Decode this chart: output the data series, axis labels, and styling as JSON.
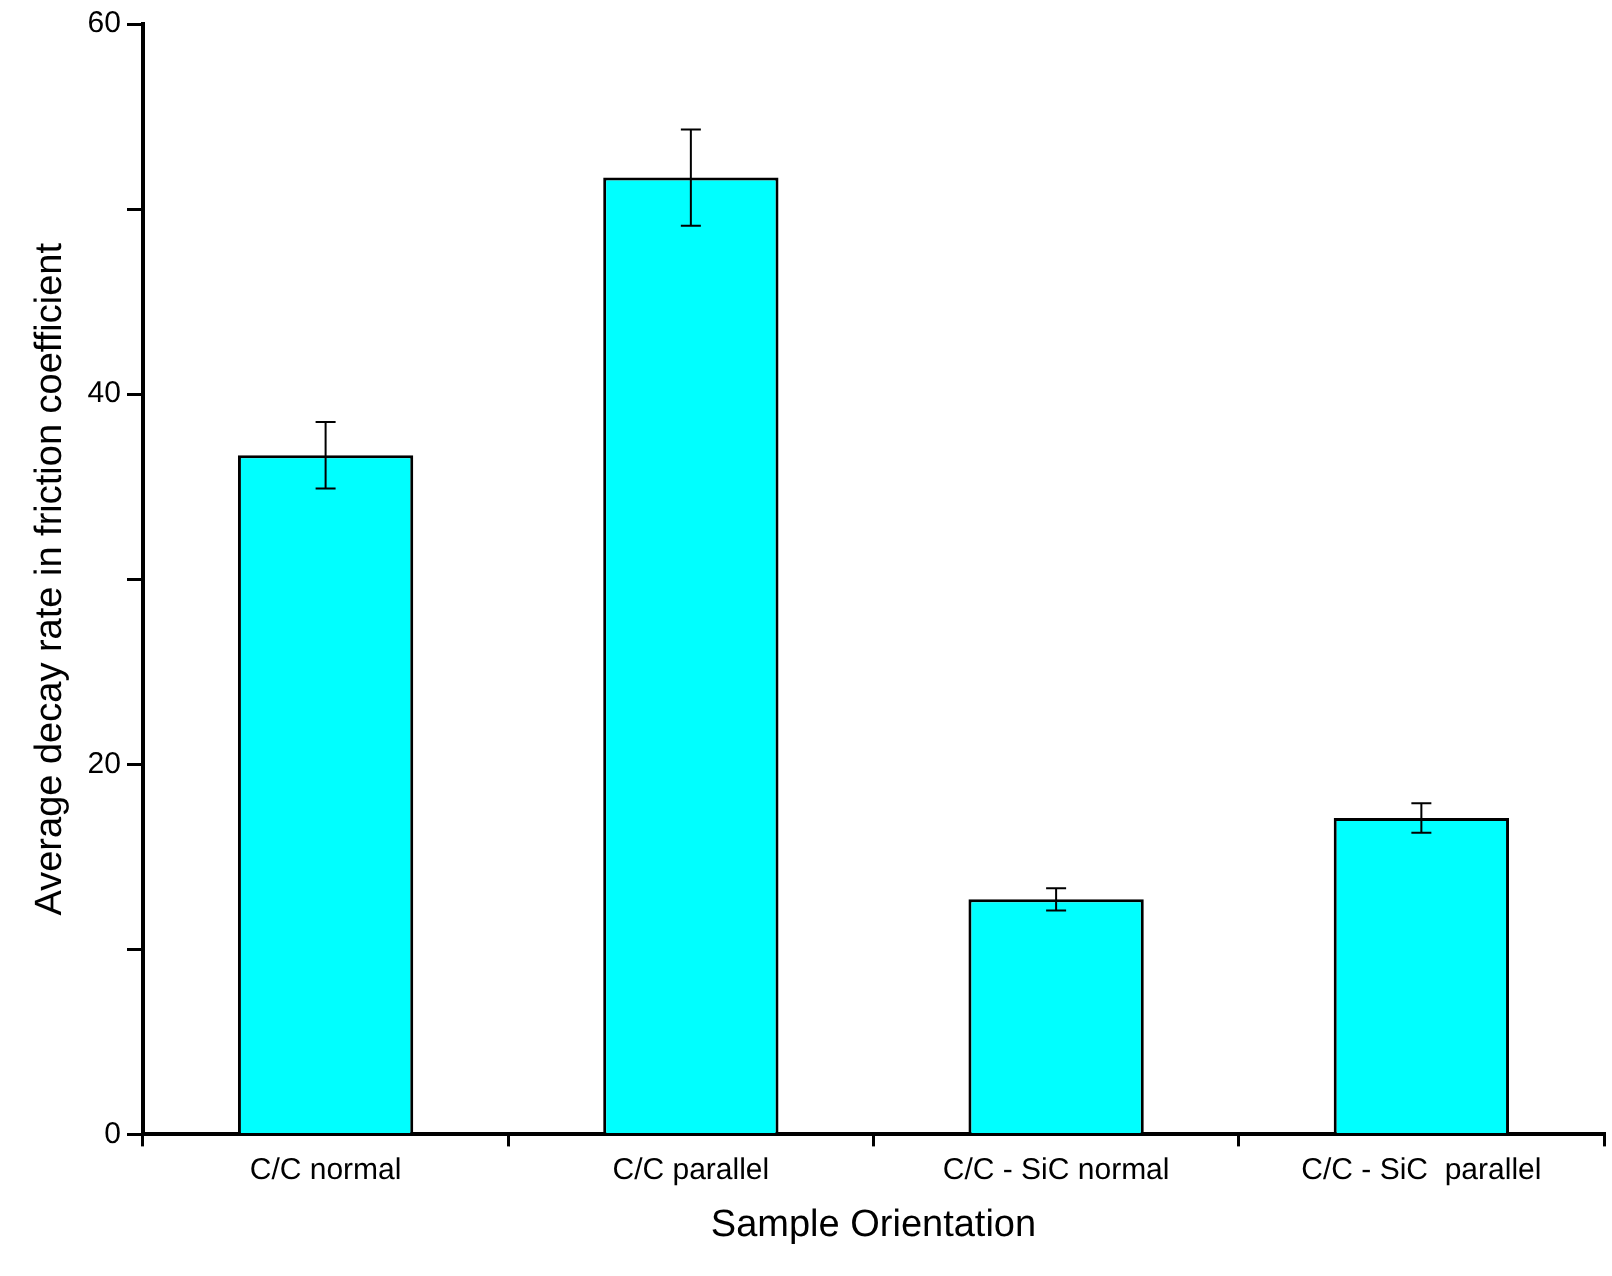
{
  "chart_data": {
    "type": "bar",
    "xlabel": "Sample Orientation",
    "ylabel": "Average decay rate in friction coefficient",
    "categories": [
      "C/C normal",
      "C/C parallel",
      "C/C - SiC normal",
      "C/C - SiC  parallel"
    ],
    "values": [
      36.7,
      51.7,
      12.7,
      17.1
    ],
    "errors": [
      1.8,
      2.6,
      0.6,
      0.8
    ],
    "color": "#00ffff",
    "ylim": [
      0,
      60
    ],
    "yticks": [
      0,
      {
        "value": 10,
        "label": null
      },
      20,
      {
        "value": 30,
        "label": null
      },
      40,
      {
        "value": 50,
        "label": null
      },
      60
    ],
    "grid": false,
    "legend": false
  }
}
